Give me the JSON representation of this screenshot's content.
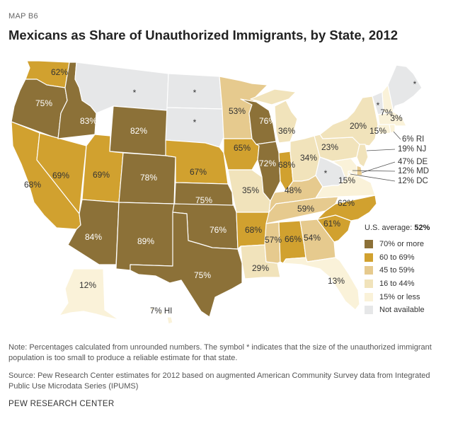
{
  "header": {
    "map_label": "MAP B6",
    "title": "Mexicans as Share of Unauthorized Immigrants, by State, 2012"
  },
  "colors": {
    "seventy_plus": "#8c7138",
    "sixty_69": "#d1a12f",
    "forty_five_59": "#e6ca8e",
    "sixteen_44": "#f1e3bb",
    "fifteen_less": "#faf2d9",
    "not_available": "#e6e7e8"
  },
  "states": [
    {
      "abbr": "WA",
      "label": "62%",
      "cat": "sixty_69"
    },
    {
      "abbr": "OR",
      "label": "75%",
      "cat": "seventy_plus"
    },
    {
      "abbr": "CA",
      "label": "68%",
      "cat": "sixty_69"
    },
    {
      "abbr": "NV",
      "label": "69%",
      "cat": "sixty_69"
    },
    {
      "abbr": "ID",
      "label": "83%",
      "cat": "seventy_plus"
    },
    {
      "abbr": "MT",
      "label": "*",
      "cat": "not_available"
    },
    {
      "abbr": "WY",
      "label": "82%",
      "cat": "seventy_plus"
    },
    {
      "abbr": "UT",
      "label": "69%",
      "cat": "sixty_69"
    },
    {
      "abbr": "AZ",
      "label": "84%",
      "cat": "seventy_plus"
    },
    {
      "abbr": "CO",
      "label": "78%",
      "cat": "seventy_plus"
    },
    {
      "abbr": "NM",
      "label": "89%",
      "cat": "seventy_plus"
    },
    {
      "abbr": "ND",
      "label": "*",
      "cat": "not_available"
    },
    {
      "abbr": "SD",
      "label": "*",
      "cat": "not_available"
    },
    {
      "abbr": "NE",
      "label": "67%",
      "cat": "sixty_69"
    },
    {
      "abbr": "KS",
      "label": "75%",
      "cat": "seventy_plus"
    },
    {
      "abbr": "OK",
      "label": "76%",
      "cat": "seventy_plus"
    },
    {
      "abbr": "TX",
      "label": "75%",
      "cat": "seventy_plus"
    },
    {
      "abbr": "MN",
      "label": "53%",
      "cat": "forty_five_59"
    },
    {
      "abbr": "IA",
      "label": "65%",
      "cat": "sixty_69"
    },
    {
      "abbr": "MO",
      "label": "35%",
      "cat": "sixteen_44"
    },
    {
      "abbr": "AR",
      "label": "68%",
      "cat": "sixty_69"
    },
    {
      "abbr": "LA",
      "label": "29%",
      "cat": "sixteen_44"
    },
    {
      "abbr": "WI",
      "label": "76%",
      "cat": "seventy_plus"
    },
    {
      "abbr": "IL",
      "label": "72%",
      "cat": "seventy_plus"
    },
    {
      "abbr": "MI",
      "label": "36%",
      "cat": "sixteen_44"
    },
    {
      "abbr": "IN",
      "label": "68%",
      "cat": "sixty_69"
    },
    {
      "abbr": "OH",
      "label": "34%",
      "cat": "sixteen_44"
    },
    {
      "abbr": "KY",
      "label": "48%",
      "cat": "forty_five_59"
    },
    {
      "abbr": "TN",
      "label": "59%",
      "cat": "forty_five_59"
    },
    {
      "abbr": "MS",
      "label": "57%",
      "cat": "forty_five_59"
    },
    {
      "abbr": "AL",
      "label": "66%",
      "cat": "sixty_69"
    },
    {
      "abbr": "GA",
      "label": "54%",
      "cat": "forty_five_59"
    },
    {
      "abbr": "FL",
      "label": "13%",
      "cat": "fifteen_less"
    },
    {
      "abbr": "SC",
      "label": "61%",
      "cat": "sixty_69"
    },
    {
      "abbr": "NC",
      "label": "62%",
      "cat": "sixty_69"
    },
    {
      "abbr": "VA",
      "label": "15%",
      "cat": "fifteen_less"
    },
    {
      "abbr": "WV",
      "label": "*",
      "cat": "not_available"
    },
    {
      "abbr": "PA",
      "label": "23%",
      "cat": "sixteen_44"
    },
    {
      "abbr": "NY",
      "label": "20%",
      "cat": "sixteen_44"
    },
    {
      "abbr": "VT",
      "label": "*",
      "cat": "not_available"
    },
    {
      "abbr": "NH",
      "label": "7%",
      "cat": "fifteen_less"
    },
    {
      "abbr": "ME",
      "label": "*",
      "cat": "not_available"
    },
    {
      "abbr": "MA",
      "label": "3%",
      "cat": "fifteen_less"
    },
    {
      "abbr": "CT",
      "label": "15%",
      "cat": "fifteen_less"
    },
    {
      "abbr": "AK",
      "label": "12%",
      "cat": "fifteen_less"
    },
    {
      "abbr": "RI",
      "label": "6% RI",
      "cat": "fifteen_less"
    },
    {
      "abbr": "NJ",
      "label": "19% NJ",
      "cat": "sixteen_44"
    },
    {
      "abbr": "DE",
      "label": "47% DE",
      "cat": "forty_five_59"
    },
    {
      "abbr": "MD",
      "label": "12% MD",
      "cat": "fifteen_less"
    },
    {
      "abbr": "DC",
      "label": "12% DC",
      "cat": "fifteen_less"
    },
    {
      "abbr": "HI",
      "label": "7% HI",
      "cat": "fifteen_less"
    }
  ],
  "legend": {
    "us_average_label": "U.S. average:",
    "us_average_value": "52%",
    "items": [
      {
        "label": "70% or more",
        "cat": "seventy_plus"
      },
      {
        "label": "60 to 69%",
        "cat": "sixty_69"
      },
      {
        "label": "45 to 59%",
        "cat": "forty_five_59"
      },
      {
        "label": "16 to 44%",
        "cat": "sixteen_44"
      },
      {
        "label": "15% or less",
        "cat": "fifteen_less"
      },
      {
        "label": "Not available",
        "cat": "not_available"
      }
    ]
  },
  "note": "Note: Percentages calculated from unrounded numbers. The symbol * indicates that the size of the unauthorized immigrant population is too small to produce a reliable estimate for that state.",
  "source": "Source: Pew Research Center estimates for 2012 based on augmented American Community Survey data from Integrated Public Use Microdata Series (IPUMS)",
  "footer": "PEW RESEARCH CENTER"
}
